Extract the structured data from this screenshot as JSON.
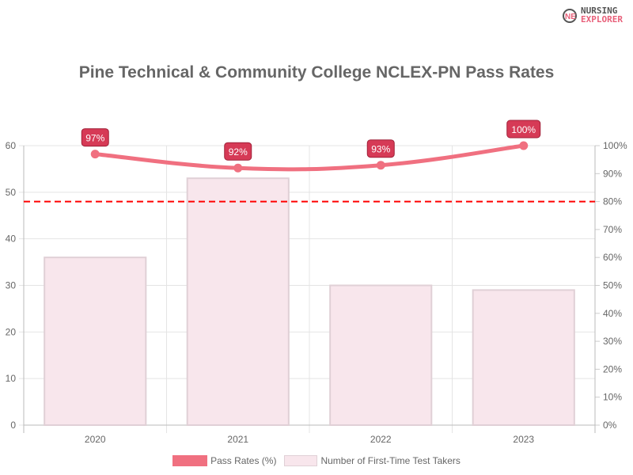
{
  "logo": {
    "line1": "NURSING",
    "line2": "EXPLORER"
  },
  "chart_data": {
    "type": "bar",
    "title": "Pine Technical & Community College NCLEX-PN Pass Rates",
    "categories": [
      "2020",
      "2021",
      "2022",
      "2023"
    ],
    "series": [
      {
        "name": "Pass Rates (%)",
        "type": "line",
        "axis": "right",
        "values": [
          97,
          92,
          93,
          100
        ],
        "labels": [
          "97%",
          "92%",
          "93%",
          "100%"
        ],
        "color": "#f07080"
      },
      {
        "name": "Number of First-Time Test Takers",
        "type": "bar",
        "axis": "left",
        "values": [
          36,
          53,
          30,
          29
        ],
        "color": "#f8e6ec",
        "border": "#e0d0d6"
      }
    ],
    "ylim_left": [
      0,
      60
    ],
    "yticks_left": [
      "0",
      "10",
      "20",
      "30",
      "40",
      "50",
      "60"
    ],
    "ylim_right": [
      0,
      100
    ],
    "yticks_right": [
      "0%",
      "10%",
      "20%",
      "30%",
      "40%",
      "50%",
      "60%",
      "70%",
      "80%",
      "90%",
      "100%"
    ],
    "reference_line": {
      "axis": "right",
      "value": 80,
      "style": "dashed",
      "color": "#ff0000"
    },
    "grid": true,
    "legend": "bottom"
  }
}
